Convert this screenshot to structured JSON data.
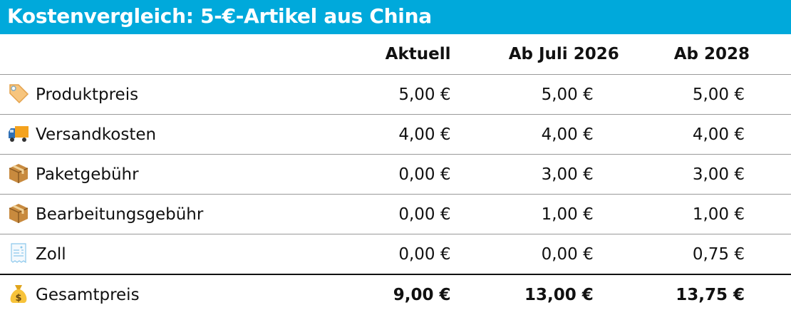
{
  "title": "Kostenvergleich: 5-€-Artikel aus China",
  "columns": [
    "",
    "Aktuell",
    "Ab Juli 2026",
    "Ab 2028"
  ],
  "rows": [
    {
      "icon": "price-tag-icon",
      "label": "Produktpreis",
      "values": [
        "5,00 €",
        "5,00 €",
        "5,00 €"
      ]
    },
    {
      "icon": "delivery-truck-icon",
      "label": "Versandkosten",
      "values": [
        "4,00 €",
        "4,00 €",
        "4,00 €"
      ]
    },
    {
      "icon": "package-icon",
      "label": "Paketgebühr",
      "values": [
        "0,00 €",
        "3,00 €",
        "3,00 €"
      ]
    },
    {
      "icon": "package-icon",
      "label": "Bearbeitungsgebühr",
      "values": [
        "0,00 €",
        "1,00 €",
        "1,00 €"
      ]
    },
    {
      "icon": "receipt-icon",
      "label": "Zoll",
      "values": [
        "0,00 €",
        "0,00 €",
        "0,75 €"
      ]
    }
  ],
  "total": {
    "icon": "money-bag-icon",
    "label": "Gesamtpreis",
    "values": [
      "9,00 €",
      "13,00 €",
      "13,75 €"
    ]
  },
  "colors": {
    "header_bg": "#00a9db",
    "header_text": "#ffffff"
  }
}
